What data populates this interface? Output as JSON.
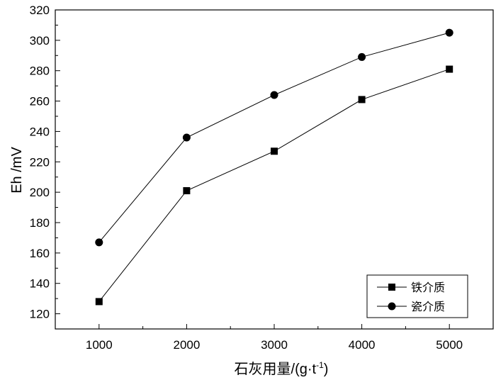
{
  "chart_data": {
    "type": "line",
    "x": [
      1000,
      2000,
      3000,
      4000,
      5000
    ],
    "series": [
      {
        "name": "铁介质",
        "marker": "square",
        "values": [
          128,
          201,
          227,
          261,
          281
        ]
      },
      {
        "name": "瓷介质",
        "marker": "circle",
        "values": [
          167,
          236,
          264,
          289,
          305
        ]
      }
    ],
    "xlabel": "石灰用量/(g·t⁻¹)",
    "ylabel": "Eh /mV",
    "xlim": [
      500,
      5500
    ],
    "ylim": [
      110,
      320
    ],
    "xticks": [
      "1000",
      "2000",
      "3000",
      "4000",
      "5000"
    ],
    "yticks": [
      "120",
      "140",
      "160",
      "180",
      "200",
      "220",
      "240",
      "260",
      "280",
      "300",
      "320"
    ],
    "grid": false,
    "legend_position": "bottom-right",
    "line_color": "#000000"
  }
}
